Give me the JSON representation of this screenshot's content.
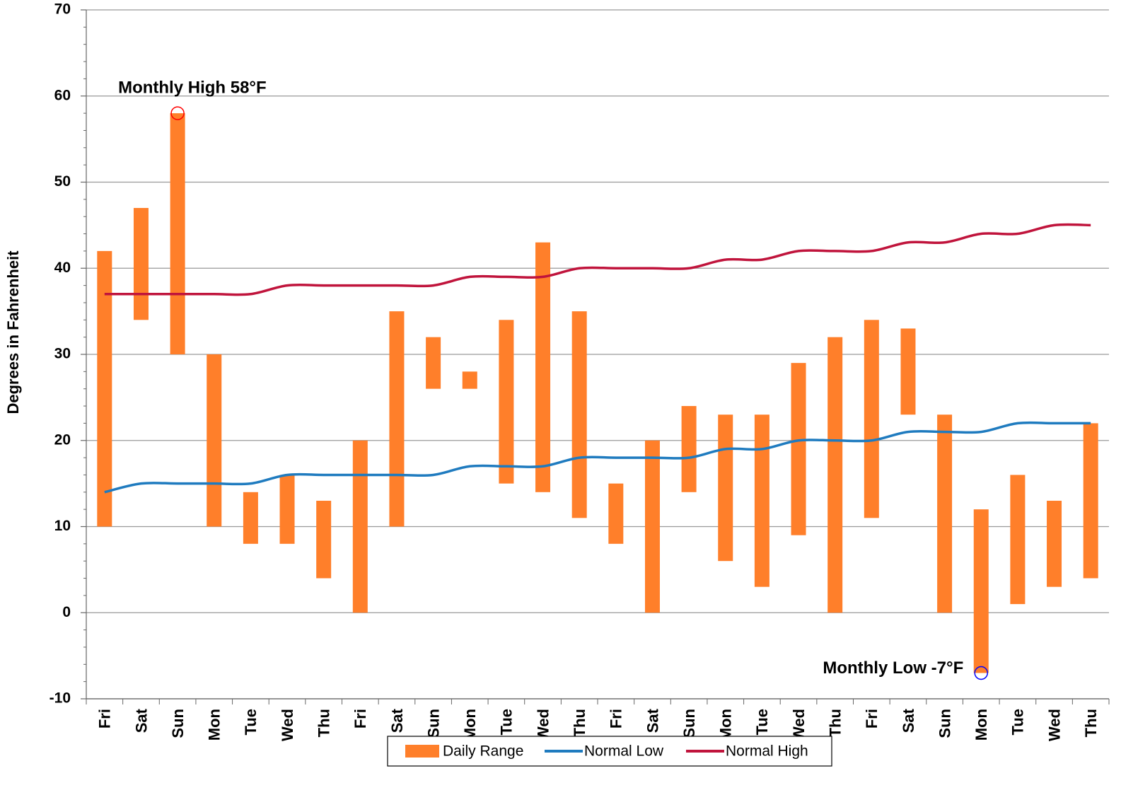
{
  "chart_data": {
    "type": "range-bar-line",
    "y_label": "Degrees in Fahrenheit",
    "categories": [
      "Fri",
      "Sat",
      "Sun",
      "Mon",
      "Tue",
      "Wed",
      "Thu",
      "Fri",
      "Sat",
      "Sun",
      "Mon",
      "Tue",
      "Wed",
      "Thu",
      "Fri",
      "Sat",
      "Sun",
      "Mon",
      "Tue",
      "Wed",
      "Thu",
      "Fri",
      "Sat",
      "Sun",
      "Mon",
      "Tue",
      "Wed",
      "Thu"
    ],
    "series": [
      {
        "name": "Daily Range",
        "color": "#ff7f2a",
        "low": [
          10,
          34,
          30,
          10,
          8,
          8,
          4,
          0,
          10,
          26,
          26,
          15,
          14,
          11,
          8,
          0,
          14,
          6,
          3,
          9,
          0,
          11,
          23,
          0,
          -7,
          1,
          3,
          4
        ],
        "high": [
          42,
          47,
          58,
          30,
          14,
          16,
          13,
          20,
          35,
          32,
          28,
          34,
          43,
          35,
          15,
          20,
          24,
          23,
          23,
          29,
          32,
          34,
          33,
          23,
          12,
          16,
          13,
          22
        ]
      },
      {
        "name": "Normal Low",
        "color": "#1f7bbf",
        "values": [
          14,
          15,
          15,
          15,
          15,
          16,
          16,
          16,
          16,
          16,
          17,
          17,
          17,
          18,
          18,
          18,
          18,
          19,
          19,
          20,
          20,
          20,
          21,
          21,
          21,
          22,
          22,
          22
        ]
      },
      {
        "name": "Normal High",
        "color": "#c0143c",
        "values": [
          37,
          37,
          37,
          37,
          37,
          38,
          38,
          38,
          38,
          38,
          39,
          39,
          39,
          40,
          40,
          40,
          40,
          41,
          41,
          42,
          42,
          42,
          43,
          43,
          44,
          44,
          45,
          45
        ]
      }
    ],
    "annotations": [
      {
        "text": "Monthly High 58°F",
        "color": "#ff0000"
      },
      {
        "text": "Monthly Low -7°F",
        "color": "#0000ff"
      }
    ],
    "ylim": [
      -10,
      70
    ],
    "yticks": [
      -10,
      0,
      10,
      20,
      30,
      40,
      50,
      60,
      70
    ],
    "grid": true,
    "legend": "bottom"
  }
}
